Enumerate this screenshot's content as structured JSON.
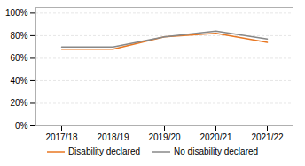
{
  "chart_data": {
    "type": "line",
    "categories": [
      "2017/18",
      "2018/19",
      "2019/20",
      "2020/21",
      "2021/22"
    ],
    "series": [
      {
        "name": "Disability declared",
        "color": "#E87722",
        "values": [
          0.68,
          0.68,
          0.79,
          0.82,
          0.74
        ]
      },
      {
        "name": "No disability declared",
        "color": "#888888",
        "values": [
          0.7,
          0.7,
          0.79,
          0.84,
          0.77
        ]
      }
    ],
    "ylim": [
      0,
      1.05
    ],
    "yticks": [
      {
        "value": 0,
        "label": "0%"
      },
      {
        "value": 0.2,
        "label": "20%"
      },
      {
        "value": 0.4,
        "label": "40%"
      },
      {
        "value": 0.6,
        "label": "60%"
      },
      {
        "value": 0.8,
        "label": "80%"
      },
      {
        "value": 1.0,
        "label": "100%"
      }
    ],
    "grid": true,
    "legend": "bottom"
  }
}
